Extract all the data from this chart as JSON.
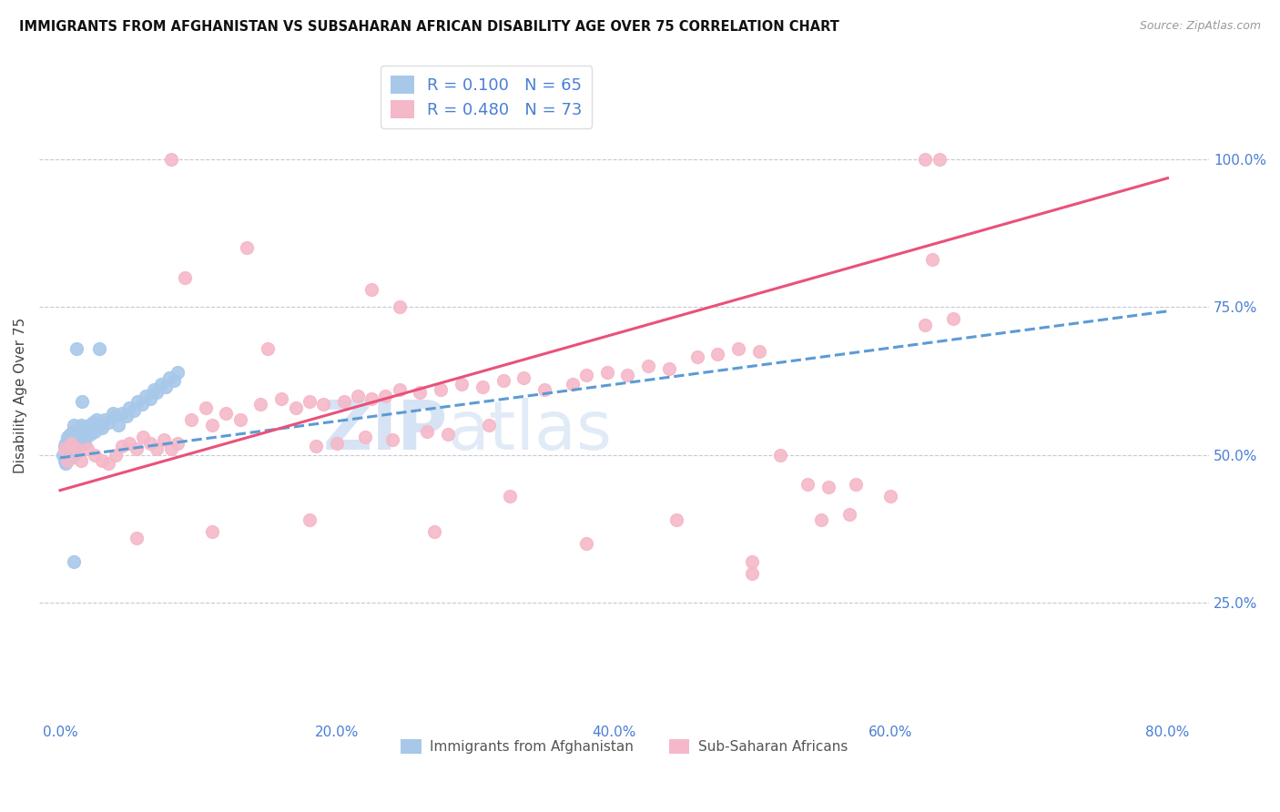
{
  "title": "IMMIGRANTS FROM AFGHANISTAN VS SUBSAHARAN AFRICAN DISABILITY AGE OVER 75 CORRELATION CHART",
  "source": "Source: ZipAtlas.com",
  "ylabel": "Disability Age Over 75",
  "xlim": [
    -1.5,
    83
  ],
  "ylim": [
    5,
    115
  ],
  "xtick_vals": [
    0,
    20,
    40,
    60,
    80
  ],
  "ytick_vals": [
    25,
    50,
    75,
    100
  ],
  "legend_entry1_label": "R = 0.100   N = 65",
  "legend_entry2_label": "R = 0.480   N = 73",
  "legend_entry1_color": "#a8c8ea",
  "legend_entry2_color": "#f5b8c8",
  "regression1_color": "#5b9bd5",
  "regression2_color": "#e8527a",
  "watermark_text": "ZIPatlas",
  "watermark_color": "#d0e0f5",
  "afg_x": [
    0.2,
    0.3,
    0.3,
    0.4,
    0.4,
    0.5,
    0.5,
    0.5,
    0.6,
    0.6,
    0.7,
    0.7,
    0.8,
    0.8,
    0.9,
    0.9,
    1.0,
    1.0,
    1.0,
    1.1,
    1.1,
    1.2,
    1.2,
    1.3,
    1.3,
    1.4,
    1.5,
    1.5,
    1.6,
    1.7,
    1.8,
    1.9,
    2.0,
    2.1,
    2.2,
    2.3,
    2.4,
    2.5,
    2.6,
    2.8,
    3.0,
    3.2,
    3.5,
    3.8,
    4.0,
    4.2,
    4.5,
    4.8,
    5.0,
    5.3,
    5.6,
    5.9,
    6.2,
    6.5,
    6.8,
    7.0,
    7.3,
    7.6,
    7.9,
    8.2,
    8.5,
    1.2,
    1.6,
    2.8,
    1.0
  ],
  "afg_y": [
    50.0,
    51.5,
    49.0,
    52.0,
    48.5,
    50.5,
    53.0,
    49.5,
    51.0,
    52.5,
    50.0,
    53.5,
    51.5,
    49.5,
    52.0,
    54.0,
    50.0,
    52.5,
    55.0,
    51.0,
    53.0,
    50.5,
    52.0,
    51.5,
    54.0,
    52.5,
    53.0,
    55.0,
    54.5,
    53.0,
    52.0,
    53.5,
    54.0,
    55.0,
    53.5,
    54.5,
    55.5,
    54.0,
    56.0,
    55.0,
    54.5,
    56.0,
    55.5,
    57.0,
    56.5,
    55.0,
    57.0,
    56.5,
    58.0,
    57.5,
    59.0,
    58.5,
    60.0,
    59.5,
    61.0,
    60.5,
    62.0,
    61.5,
    63.0,
    62.5,
    64.0,
    68.0,
    59.0,
    68.0,
    32.0
  ],
  "ss_x": [
    0.3,
    0.5,
    0.8,
    1.2,
    1.5,
    2.0,
    2.5,
    3.0,
    3.5,
    4.0,
    4.5,
    5.0,
    5.5,
    6.0,
    6.5,
    7.0,
    7.5,
    8.0,
    8.5,
    9.5,
    10.5,
    11.0,
    12.0,
    13.0,
    14.5,
    16.0,
    17.0,
    18.0,
    19.0,
    20.5,
    21.5,
    22.5,
    23.5,
    24.5,
    26.0,
    27.5,
    29.0,
    30.5,
    32.0,
    33.5,
    18.5,
    20.0,
    22.0,
    24.0,
    26.5,
    28.0,
    31.0,
    35.0,
    37.0,
    38.0,
    39.5,
    41.0,
    42.5,
    44.0,
    46.0,
    47.5,
    49.0,
    50.5,
    52.0,
    54.0,
    55.5,
    57.5,
    60.0,
    62.5,
    64.5,
    9.0,
    15.0,
    32.5,
    44.5,
    50.0,
    55.0,
    57.0,
    63.0
  ],
  "ss_y": [
    51.0,
    49.0,
    52.0,
    51.0,
    49.0,
    51.0,
    50.0,
    49.0,
    48.5,
    50.0,
    51.5,
    52.0,
    51.0,
    53.0,
    52.0,
    51.0,
    52.5,
    51.0,
    52.0,
    56.0,
    58.0,
    55.0,
    57.0,
    56.0,
    58.5,
    59.5,
    58.0,
    59.0,
    58.5,
    59.0,
    60.0,
    59.5,
    60.0,
    61.0,
    60.5,
    61.0,
    62.0,
    61.5,
    62.5,
    63.0,
    51.5,
    52.0,
    53.0,
    52.5,
    54.0,
    53.5,
    55.0,
    61.0,
    62.0,
    63.5,
    64.0,
    63.5,
    65.0,
    64.5,
    66.5,
    67.0,
    68.0,
    67.5,
    50.0,
    45.0,
    44.5,
    45.0,
    43.0,
    72.0,
    73.0,
    80.0,
    68.0,
    43.0,
    39.0,
    32.0,
    39.0,
    40.0,
    83.0
  ],
  "ss_outliers_x": [
    8.0,
    13.5,
    22.5,
    24.5,
    62.5,
    63.5
  ],
  "ss_outliers_y": [
    100.0,
    85.0,
    78.0,
    75.0,
    100.0,
    100.0
  ],
  "ss_low_x": [
    5.5,
    11.0,
    18.0,
    27.0,
    38.0,
    50.0
  ],
  "ss_low_y": [
    36.0,
    37.0,
    39.0,
    37.0,
    35.0,
    30.0
  ]
}
